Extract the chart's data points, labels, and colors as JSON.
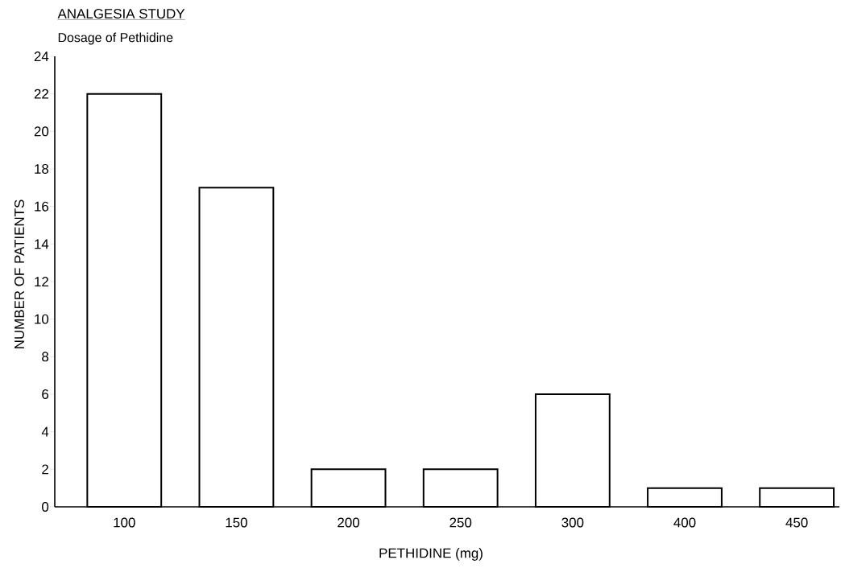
{
  "chart_data": {
    "type": "bar",
    "title": "ANALGESIA STUDY",
    "subtitle": "Dosage of Pethidine",
    "xlabel": "PETHIDINE (mg)",
    "ylabel": "NUMBER OF PATIENTS",
    "categories": [
      "100",
      "150",
      "200",
      "250",
      "300",
      "400",
      "450"
    ],
    "values": [
      22,
      17,
      2,
      2,
      6,
      1,
      1
    ],
    "color": "#ffffff",
    "ylim": [
      0,
      24
    ],
    "yticks": [
      0,
      2,
      4,
      6,
      8,
      10,
      12,
      14,
      16,
      18,
      20,
      22,
      24
    ]
  }
}
